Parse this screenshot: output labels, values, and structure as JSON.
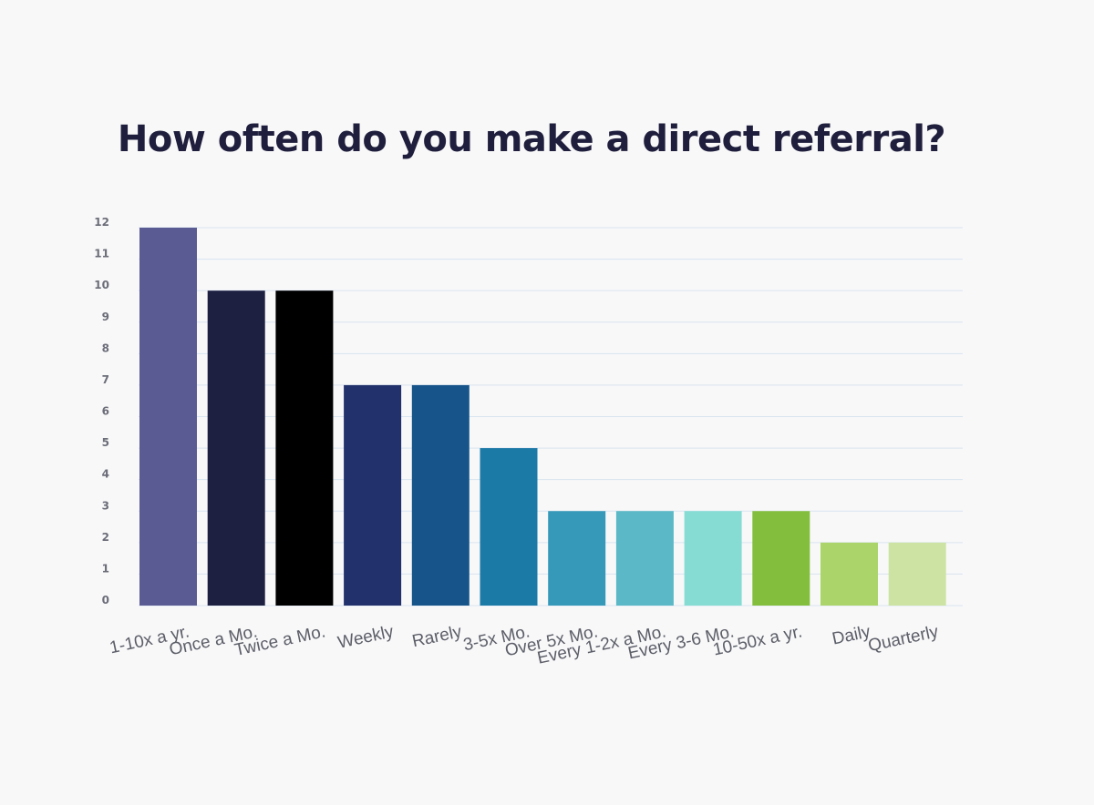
{
  "chart_data": {
    "type": "bar",
    "title": "How often do you make a direct referral?",
    "xlabel": "",
    "ylabel": "",
    "ylim": [
      0,
      12
    ],
    "yticks": [
      0,
      1,
      2,
      3,
      4,
      5,
      6,
      7,
      8,
      9,
      10,
      11,
      12
    ],
    "grid": true,
    "legend": "none",
    "categories": [
      "1-10x a yr.",
      "Once a Mo.",
      "Twice a Mo.",
      "Weekly",
      "Rarely",
      "3-5x Mo.",
      "Over 5x Mo.",
      "Every 1-2x a Mo.",
      "Every 3-6 Mo.",
      "10-50x a yr.",
      "Daily",
      "Quarterly"
    ],
    "values": [
      12,
      10,
      10,
      7,
      7,
      5,
      3,
      3,
      3,
      3,
      2,
      2
    ],
    "colors": [
      "#5b5b93",
      "#1e2042",
      "#000000",
      "#22316b",
      "#17548a",
      "#1c7aa6",
      "#3699b9",
      "#5bb8c6",
      "#86dcd3",
      "#84be3d",
      "#abd46b",
      "#cde3a3"
    ]
  }
}
